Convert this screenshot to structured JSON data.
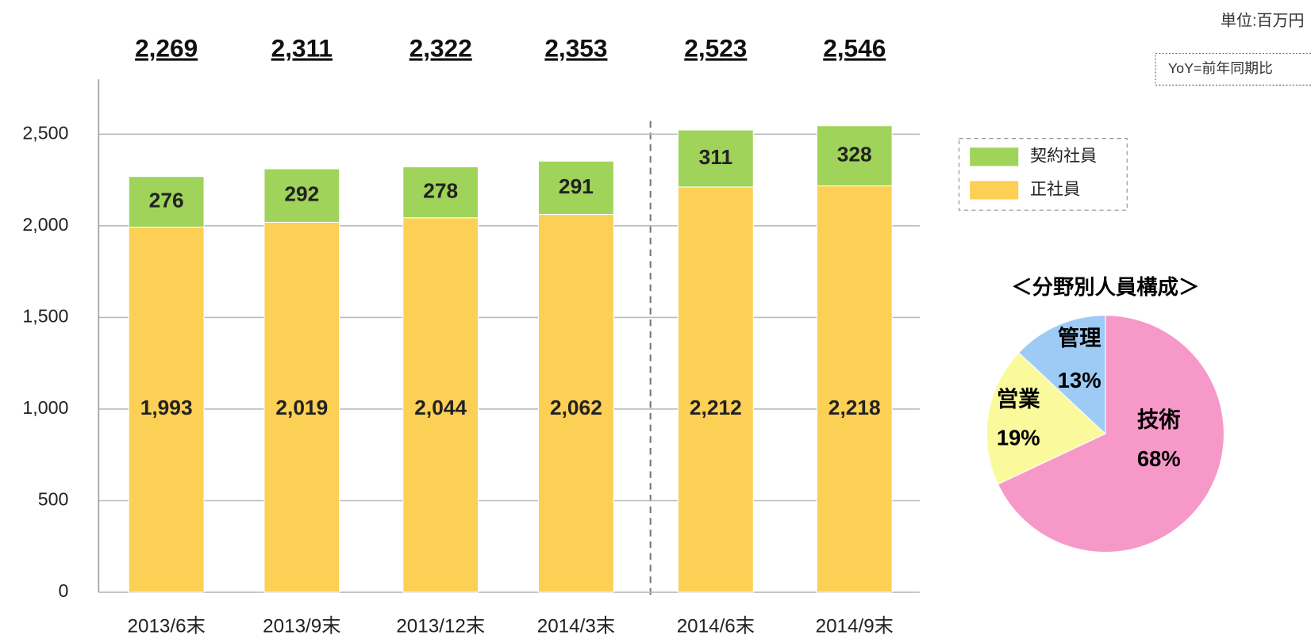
{
  "chart_data": {
    "type": "stacked-bar",
    "unit_note": "単位:百万円",
    "yoy_note": "YoY=前年同期比",
    "categories": [
      "2013/6末",
      "2013/9末",
      "2013/12末",
      "2014/3末",
      "2014/6末",
      "2014/9末"
    ],
    "series": [
      {
        "name": "正社員",
        "color": "#fccf55",
        "values": [
          1993,
          2019,
          2044,
          2062,
          2212,
          2218
        ],
        "value_labels": [
          "1,993",
          "2,019",
          "2,044",
          "2,062",
          "2,212",
          "2,218"
        ]
      },
      {
        "name": "契約社員",
        "color": "#9fd35a",
        "values": [
          276,
          292,
          278,
          291,
          311,
          328
        ]
      }
    ],
    "totals": [
      2269,
      2311,
      2322,
      2353,
      2523,
      2546
    ],
    "total_labels": [
      "2,269",
      "2,311",
      "2,322",
      "2,353",
      "2,523",
      "2,546"
    ],
    "ylim": [
      0,
      2800
    ],
    "yticks": [
      0,
      500,
      {
        "value": 1000,
        "label": "1,000"
      },
      {
        "value": 1500,
        "label": "1,500"
      },
      {
        "value": 2000,
        "label": "2,000"
      },
      {
        "value": 2500,
        "label": "2,500"
      }
    ],
    "grid": true,
    "pie": {
      "type": "pie",
      "title": "＜分野別人員構成＞",
      "categories": [
        "技術",
        "営業",
        "管理"
      ],
      "values": [
        68,
        19,
        13
      ],
      "value_labels": [
        "68%",
        "19%",
        "13%"
      ],
      "colors": [
        "#f799c8",
        "#fafa9c",
        "#9ecbf5"
      ]
    }
  }
}
